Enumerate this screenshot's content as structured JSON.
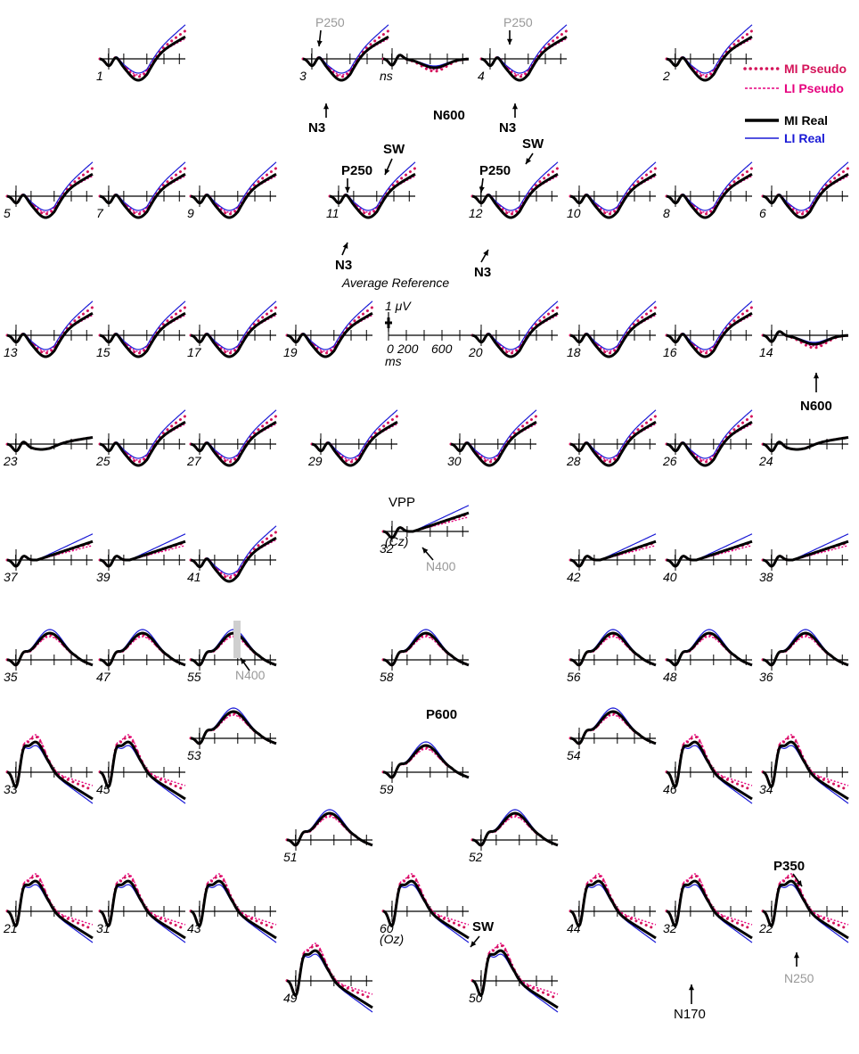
{
  "colors": {
    "mi_pseudo": "#d4145a",
    "li_pseudo": "#e6007e",
    "mi_real": "#000000",
    "li_real": "#1a1ad6",
    "gray": "#999999"
  },
  "legend": [
    {
      "label": "MI Pseudo",
      "style": "dots",
      "color": "#d4145a"
    },
    {
      "label": "LI Pseudo",
      "style": "dash",
      "color": "#e6007e"
    },
    {
      "label": "MI Real",
      "style": "thick",
      "color": "#000000"
    },
    {
      "label": "LI Real",
      "style": "thin",
      "color": "#1a1ad6"
    }
  ],
  "scale": {
    "title": "Average Reference",
    "amplitude": "1 μV",
    "x_ticks": [
      "0",
      "200",
      "600"
    ],
    "x_unit": "ms"
  },
  "electrodes": [
    {
      "label": "1",
      "shape": "V"
    },
    {
      "label": "3",
      "shape": "V"
    },
    {
      "label": "ns",
      "shape": "N6"
    },
    {
      "label": "4",
      "shape": "V"
    },
    {
      "label": "2",
      "shape": "V"
    },
    {
      "label": "5",
      "shape": "V"
    },
    {
      "label": "7",
      "shape": "V"
    },
    {
      "label": "9",
      "shape": "V"
    },
    {
      "label": "11",
      "shape": "V"
    },
    {
      "label": "12",
      "shape": "V"
    },
    {
      "label": "10",
      "shape": "V"
    },
    {
      "label": "8",
      "shape": "V"
    },
    {
      "label": "6",
      "shape": "V"
    },
    {
      "label": "13",
      "shape": "V"
    },
    {
      "label": "15",
      "shape": "V"
    },
    {
      "label": "17",
      "shape": "V"
    },
    {
      "label": "19",
      "shape": "V"
    },
    {
      "label": "20",
      "shape": "V"
    },
    {
      "label": "18",
      "shape": "V"
    },
    {
      "label": "16",
      "shape": "V"
    },
    {
      "label": "14",
      "shape": "N6"
    },
    {
      "label": "23",
      "shape": "flat"
    },
    {
      "label": "25",
      "shape": "V"
    },
    {
      "label": "27",
      "shape": "V"
    },
    {
      "label": "29",
      "shape": "V"
    },
    {
      "label": "30",
      "shape": "V"
    },
    {
      "label": "28",
      "shape": "V"
    },
    {
      "label": "26",
      "shape": "V"
    },
    {
      "label": "24",
      "shape": "flat"
    },
    {
      "label": "37",
      "shape": "rise"
    },
    {
      "label": "39",
      "shape": "rise"
    },
    {
      "label": "41",
      "shape": "V"
    },
    {
      "label": "32",
      "shape": "rise"
    },
    {
      "label": "42",
      "shape": "rise"
    },
    {
      "label": "40",
      "shape": "rise"
    },
    {
      "label": "38",
      "shape": "rise"
    },
    {
      "label": "35",
      "shape": "hump"
    },
    {
      "label": "47",
      "shape": "hump"
    },
    {
      "label": "55",
      "shape": "hump"
    },
    {
      "label": "58",
      "shape": "hump"
    },
    {
      "label": "56",
      "shape": "hump"
    },
    {
      "label": "48",
      "shape": "hump"
    },
    {
      "label": "36",
      "shape": "hump"
    },
    {
      "label": "33",
      "shape": "peak"
    },
    {
      "label": "45",
      "shape": "peak"
    },
    {
      "label": "53",
      "shape": "hump"
    },
    {
      "label": "59",
      "shape": "hump"
    },
    {
      "label": "54",
      "shape": "hump"
    },
    {
      "label": "46",
      "shape": "peak"
    },
    {
      "label": "34",
      "shape": "peak"
    },
    {
      "label": "51",
      "shape": "hump"
    },
    {
      "label": "52",
      "shape": "hump"
    },
    {
      "label": "21",
      "shape": "peak"
    },
    {
      "label": "31",
      "shape": "peak"
    },
    {
      "label": "43",
      "shape": "peak"
    },
    {
      "label": "60",
      "shape": "peak"
    },
    {
      "label": "44",
      "shape": "peak"
    },
    {
      "label": "32",
      "shape": "peak"
    },
    {
      "label": "22",
      "shape": "peak"
    },
    {
      "label": "49",
      "shape": "peak"
    },
    {
      "label": "50",
      "shape": "peak"
    }
  ],
  "sublabels": {
    "cz": "(Cz)",
    "oz": "(Oz)"
  },
  "annotations": {
    "p250": "P250",
    "n3": "N3",
    "n600": "N600",
    "sw": "SW",
    "vpp": "VPP",
    "n400": "N400",
    "p600": "P600",
    "p350": "P350",
    "n250": "N250",
    "n170": "N170"
  },
  "chart_data": {
    "type": "line",
    "title": "Average Reference",
    "series": [
      {
        "name": "MI Pseudo"
      },
      {
        "name": "LI Pseudo"
      },
      {
        "name": "MI Real"
      },
      {
        "name": "LI Real"
      }
    ],
    "x_ticks": [
      "0",
      "200",
      "600"
    ],
    "xlabel": "ms",
    "ylabel": "1 μV",
    "panel_count": 61,
    "note_values": "per-electrode ERP waveforms drawn schematically from electrode shape class"
  }
}
